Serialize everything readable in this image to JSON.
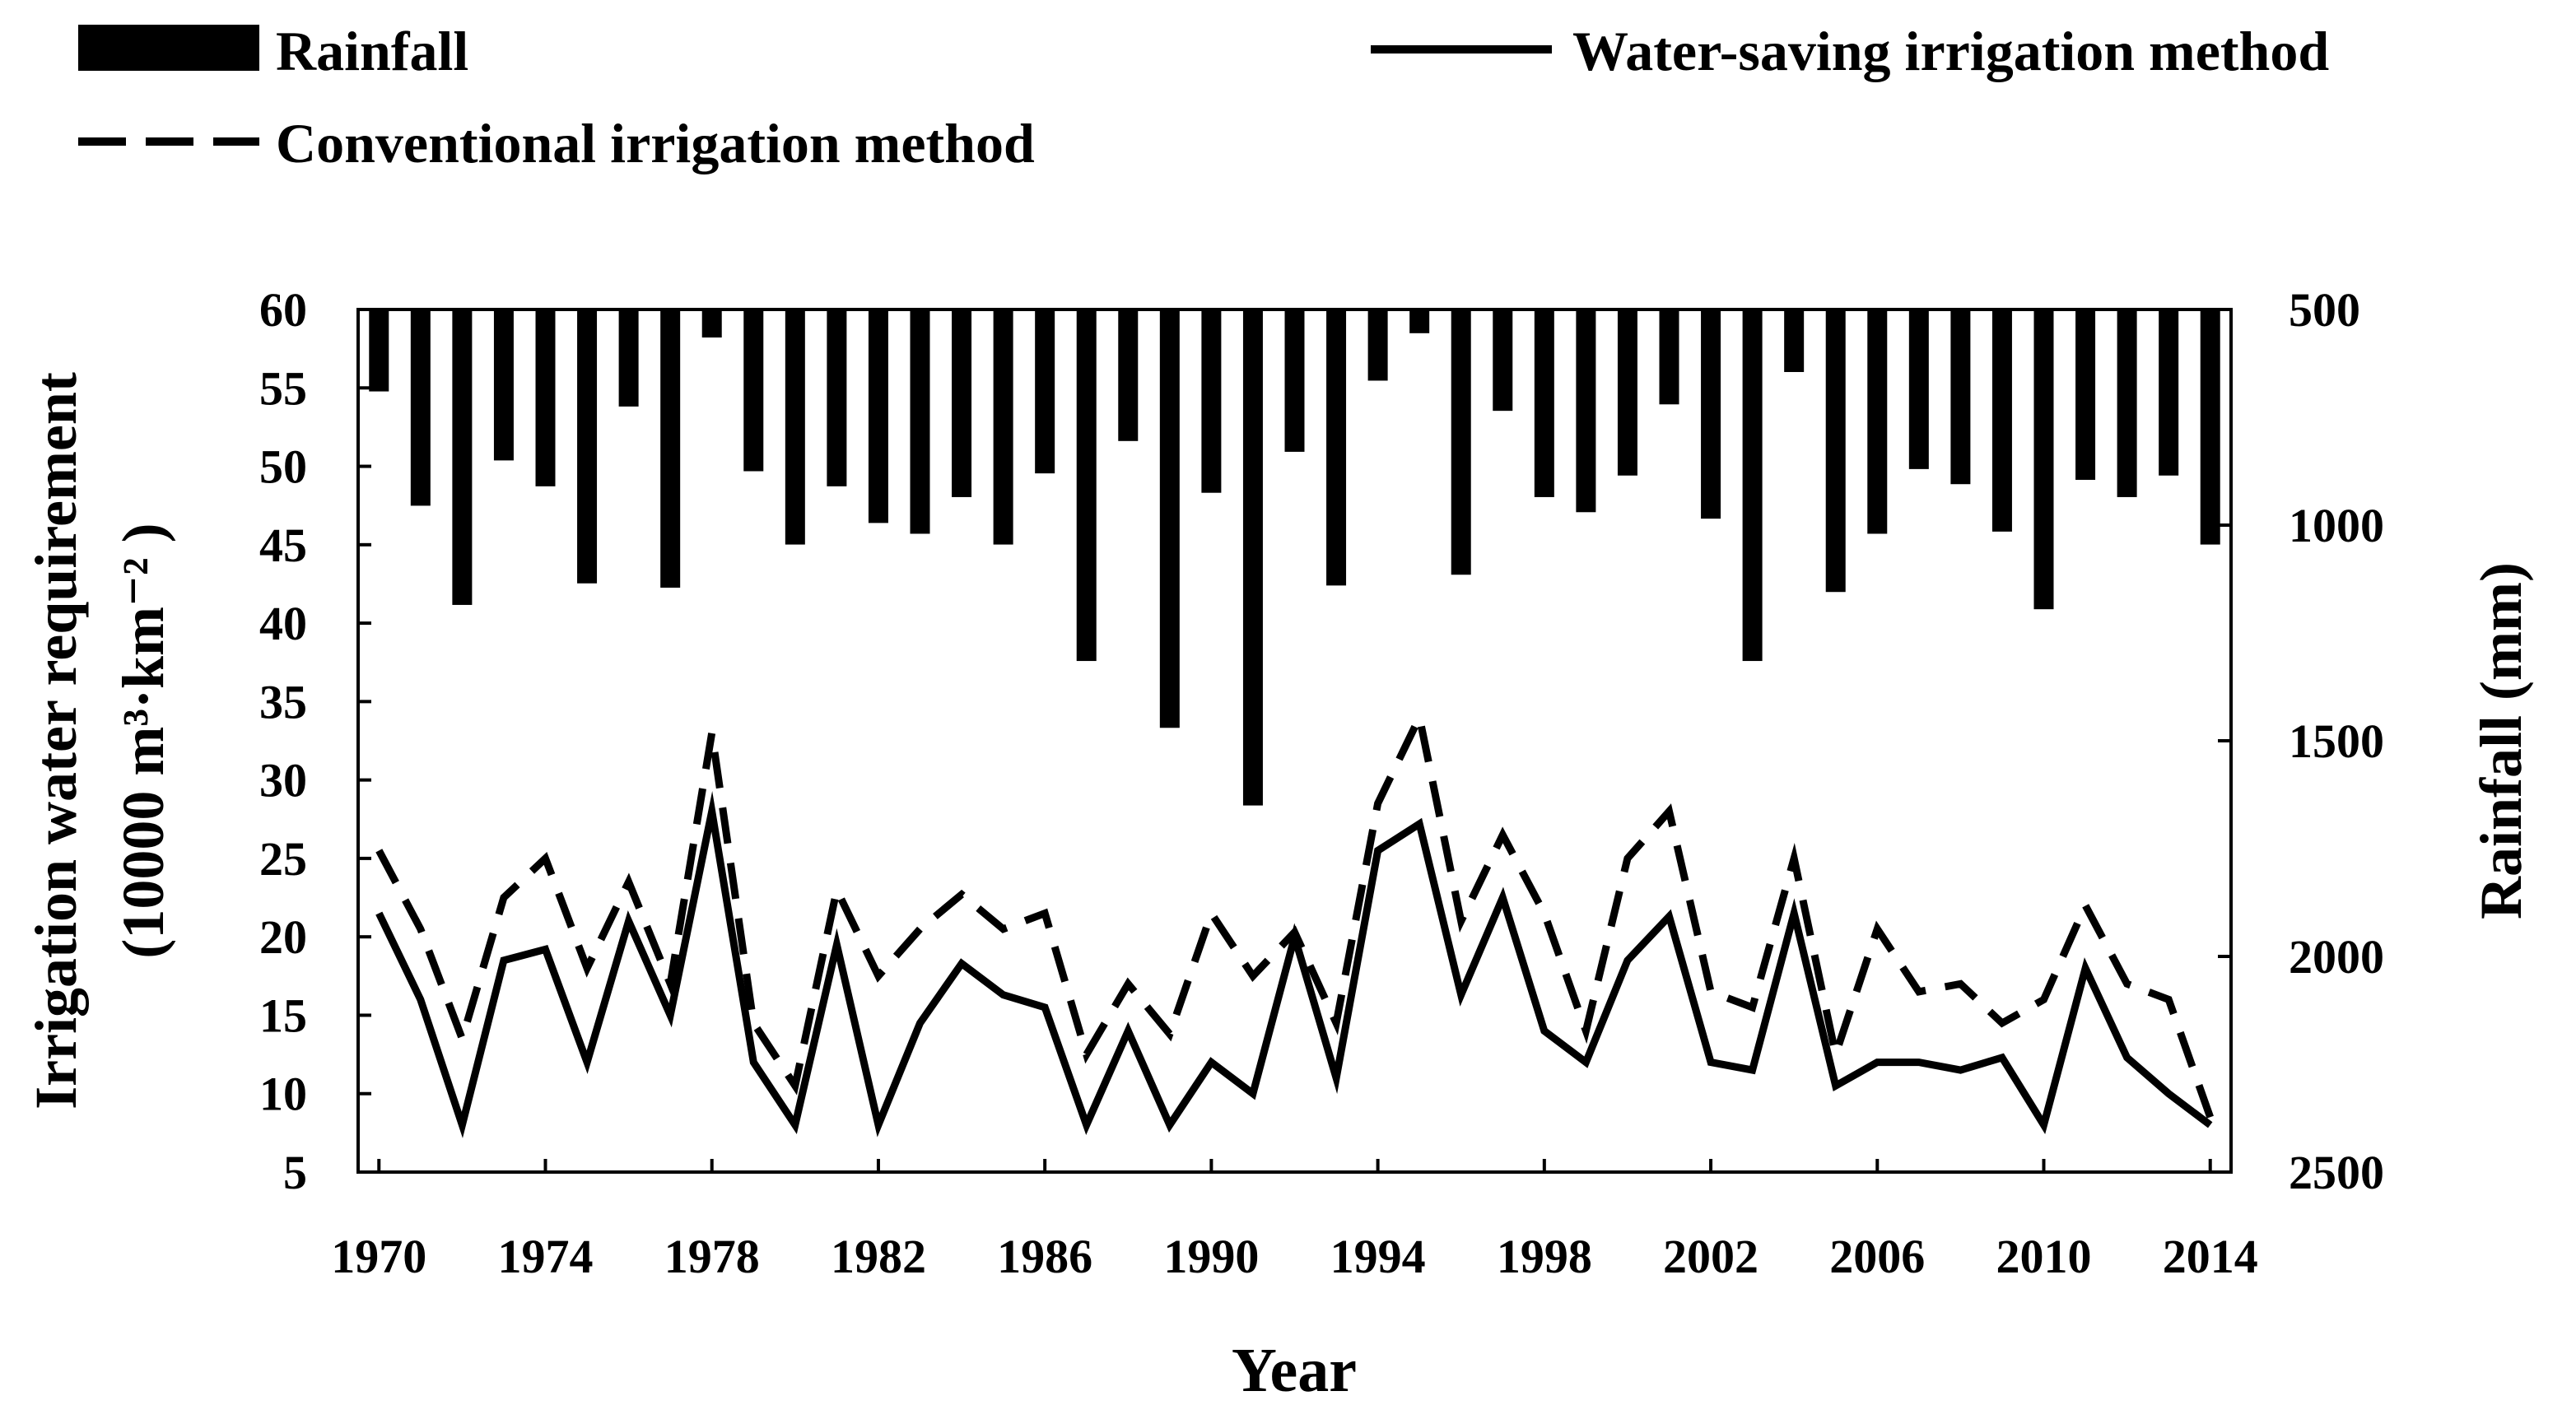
{
  "chart_data": {
    "type": "bar+line",
    "xlabel": "Year",
    "ylabel_left_line1": "Irrigation water requirement",
    "ylabel_left_line2": "(10000  m³·km⁻² )",
    "ylabel_right": "Rainfall  (mm)",
    "left_ylim": [
      5,
      60
    ],
    "left_yticks": [
      5,
      10,
      15,
      20,
      25,
      30,
      35,
      40,
      45,
      50,
      55,
      60
    ],
    "right_ylim": [
      500,
      2500
    ],
    "right_inverted": true,
    "right_yticks": [
      500,
      1000,
      1500,
      2000,
      2500
    ],
    "xlim": [
      1969.5,
      2014.5
    ],
    "xticks": [
      1970,
      1974,
      1978,
      1982,
      1986,
      1990,
      1994,
      1998,
      2002,
      2006,
      2010,
      2014
    ],
    "legend": {
      "rainfall": "Rainfall",
      "water_saving": "Water-saving irrigation method",
      "conventional": "Conventional irrigation method"
    },
    "years": [
      1970,
      1971,
      1972,
      1973,
      1974,
      1975,
      1976,
      1977,
      1978,
      1979,
      1980,
      1981,
      1982,
      1983,
      1984,
      1985,
      1986,
      1987,
      1988,
      1989,
      1990,
      1991,
      1992,
      1993,
      1994,
      1995,
      1996,
      1997,
      1998,
      1999,
      2000,
      2001,
      2002,
      2003,
      2004,
      2005,
      2006,
      2007,
      2008,
      2009,
      2010,
      2011,
      2012,
      2013,
      2014
    ],
    "series": [
      {
        "name": "Rainfall",
        "axis": "right",
        "style": "bar",
        "values": [
          690,
          955,
          1185,
          850,
          910,
          1135,
          725,
          1145,
          565,
          875,
          1045,
          910,
          995,
          1020,
          935,
          1045,
          880,
          1315,
          805,
          1470,
          925,
          1650,
          830,
          1140,
          665,
          555,
          1115,
          735,
          935,
          970,
          885,
          720,
          985,
          1315,
          645,
          1155,
          1020,
          870,
          905,
          1015,
          1195,
          895,
          935,
          885,
          1045
        ]
      },
      {
        "name": "Water-saving irrigation method",
        "axis": "left",
        "style": "solid",
        "values": [
          21.5,
          16,
          8,
          18.5,
          19.2,
          12,
          21,
          15,
          28,
          12,
          8,
          19.5,
          8,
          14.5,
          18.3,
          16.3,
          15.5,
          8,
          14,
          8,
          12,
          10,
          20,
          11,
          25.5,
          27.2,
          16.3,
          22.5,
          14,
          12,
          18.5,
          21.3,
          12,
          11.5,
          21.5,
          10.5,
          12,
          12,
          11.5,
          12.3,
          8,
          18,
          12.3,
          10,
          8
        ]
      },
      {
        "name": "Conventional irrigation method",
        "axis": "left",
        "style": "dashed",
        "values": [
          25.5,
          20.5,
          13.5,
          22.5,
          25,
          18,
          23.5,
          17,
          33,
          14.5,
          10.5,
          23,
          17.5,
          20.5,
          22.7,
          20.5,
          21.5,
          12.5,
          17,
          13.8,
          21.5,
          17.5,
          20.3,
          14.5,
          28.5,
          34,
          21,
          26.5,
          21.5,
          14,
          25,
          28,
          16.5,
          15.5,
          25,
          12.5,
          20.5,
          16.5,
          17,
          14.5,
          16,
          22,
          17,
          16,
          8.5
        ]
      }
    ]
  }
}
